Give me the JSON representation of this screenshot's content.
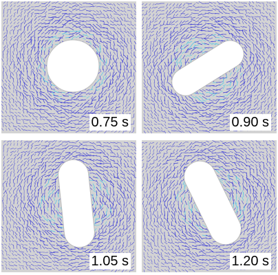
{
  "panels": [
    {
      "time_label": "0.75 s",
      "particle_shape": "circle",
      "particle_color": "#ffffff"
    },
    {
      "time_label": "0.90 s",
      "particle_shape": "capsule",
      "particle_color": "#ffffff"
    },
    {
      "time_label": "1.05 s",
      "particle_shape": "capsule",
      "particle_color": "#ffffff"
    },
    {
      "time_label": "1.20 s",
      "particle_shape": "capsule",
      "particle_color": "#ffffff"
    }
  ],
  "colors": {
    "background": "#d3d3d3",
    "vector_field": "#2f2fd6",
    "vector_highlight": "#3fc6e8"
  }
}
